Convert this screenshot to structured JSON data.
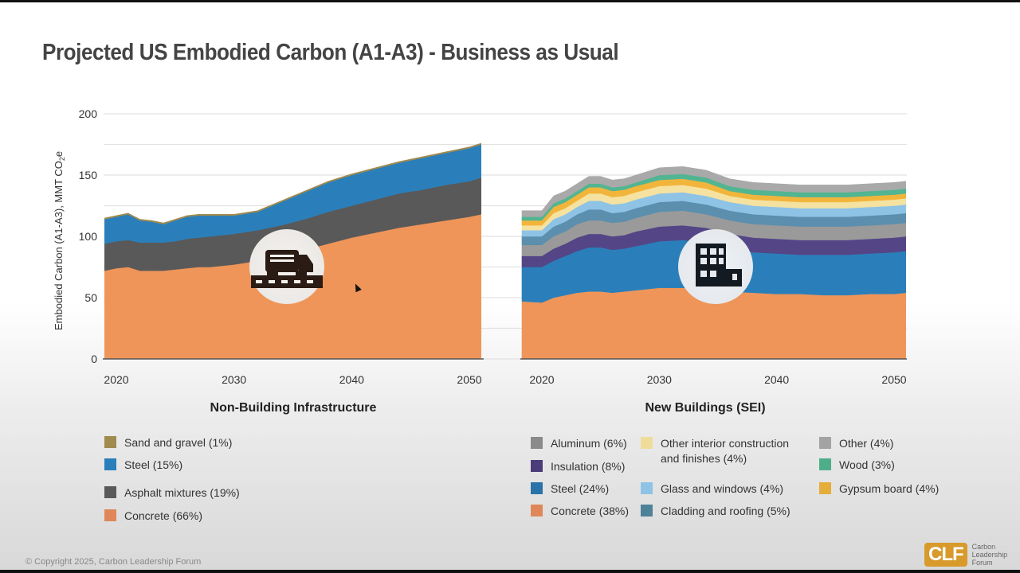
{
  "title": "Projected US Embodied Carbon (A1-A3) - Business as Usual",
  "copyright": "© Copyright 2025, Carbon Leadership Forum",
  "logo": {
    "mark": "CLF",
    "line1": "Carbon",
    "line2": "Leadership",
    "line3": "Forum",
    "color": "#d79a2b"
  },
  "chart_data": [
    {
      "type": "area",
      "stacked": true,
      "title": "Non-Building Infrastructure",
      "xlabel": "",
      "ylabel": "Embodied Carbon (A1-A3), MMT CO2e",
      "ylim": [
        0,
        200
      ],
      "yticks": [
        0,
        50,
        100,
        150,
        200
      ],
      "xticks": [
        2020,
        2030,
        2040,
        2050
      ],
      "grid": true,
      "icon": "truck-on-road-icon",
      "x": [
        2019,
        2020,
        2021,
        2022,
        2023,
        2024,
        2025,
        2026,
        2027,
        2028,
        2030,
        2032,
        2034,
        2036,
        2038,
        2040,
        2042,
        2044,
        2046,
        2048,
        2050,
        2051
      ],
      "series": [
        {
          "name": "Concrete",
          "legend": "Concrete (66%)",
          "color": "#ef9559",
          "values": [
            72,
            74,
            75,
            72,
            72,
            72,
            73,
            74,
            75,
            75,
            77,
            80,
            84,
            89,
            94,
            99,
            103,
            107,
            110,
            113,
            116,
            118
          ]
        },
        {
          "name": "Asphalt mixtures",
          "legend": "Asphalt mixtures (19%)",
          "color": "#595959",
          "values": [
            22,
            22,
            22,
            23,
            23,
            23,
            23,
            24,
            24,
            25,
            25,
            25,
            25,
            25,
            26,
            26,
            27,
            28,
            28,
            29,
            29,
            30
          ]
        },
        {
          "name": "Steel",
          "legend": "Steel (15%)",
          "color": "#2a7fba",
          "values": [
            20,
            20,
            21,
            18,
            17,
            15,
            17,
            18,
            18,
            17,
            15,
            15,
            19,
            22,
            24,
            25,
            25,
            25,
            26,
            26,
            27,
            27
          ]
        },
        {
          "name": "Sand and gravel",
          "legend": "Sand and gravel (1%)",
          "color": "#a08a4e",
          "values": [
            1,
            1,
            1,
            1,
            1,
            1,
            1,
            1,
            1,
            1,
            1,
            1,
            1,
            1,
            1,
            1,
            1,
            1,
            1,
            1,
            1,
            1
          ]
        }
      ]
    },
    {
      "type": "area",
      "stacked": true,
      "title": "New Buildings (SEI)",
      "xlabel": "",
      "ylabel": "",
      "ylim": [
        0,
        200
      ],
      "xticks": [
        2020,
        2030,
        2040,
        2050
      ],
      "grid": true,
      "icon": "building-icon",
      "x": [
        2018.3,
        2020,
        2021,
        2022,
        2023,
        2024,
        2025,
        2026,
        2027,
        2028,
        2030,
        2032,
        2034,
        2036,
        2038,
        2040,
        2042,
        2044,
        2046,
        2048,
        2050,
        2051
      ],
      "series": [
        {
          "name": "Concrete",
          "legend": "Concrete (38%)",
          "color": "#ef9559",
          "values": [
            47,
            46,
            50,
            52,
            54,
            55,
            55,
            54,
            55,
            56,
            58,
            58,
            57,
            55,
            54,
            53,
            53,
            52,
            52,
            53,
            53,
            54
          ]
        },
        {
          "name": "Steel",
          "legend": "Steel (24%)",
          "color": "#2a7fba",
          "values": [
            28,
            29,
            30,
            32,
            34,
            36,
            36,
            35,
            35,
            36,
            38,
            39,
            38,
            35,
            33,
            33,
            32,
            33,
            33,
            33,
            34,
            34
          ]
        },
        {
          "name": "Insulation",
          "legend": "Insulation (8%)",
          "color": "#544586",
          "values": [
            9,
            9,
            10,
            10,
            11,
            11,
            11,
            11,
            11,
            12,
            12,
            12,
            12,
            12,
            12,
            12,
            12,
            12,
            12,
            12,
            12,
            12
          ]
        },
        {
          "name": "Aluminum",
          "legend": "Aluminum (6%)",
          "color": "#9a9a9a",
          "values": [
            9,
            9,
            10,
            10,
            11,
            11,
            11,
            11,
            11,
            11,
            12,
            12,
            11,
            11,
            11,
            11,
            11,
            11,
            11,
            11,
            11,
            11
          ]
        },
        {
          "name": "Cladding and roofing",
          "legend": "Cladding and roofing (5%)",
          "color": "#5b8fad",
          "values": [
            7,
            7,
            8,
            8,
            8,
            9,
            9,
            8,
            8,
            8,
            8,
            8,
            8,
            8,
            8,
            8,
            8,
            8,
            8,
            8,
            8,
            8
          ]
        },
        {
          "name": "Glass and windows",
          "legend": "Glass and windows (4%)",
          "color": "#8ec3e6",
          "values": [
            5,
            5,
            6,
            6,
            6,
            7,
            7,
            7,
            7,
            7,
            7,
            7,
            7,
            7,
            7,
            7,
            7,
            7,
            7,
            7,
            7,
            7
          ]
        },
        {
          "name": "Other interior construction and finishes",
          "legend": "Other interior construction and finishes (4%)",
          "color": "#f5e2a0",
          "values": [
            4,
            4,
            5,
            5,
            5,
            6,
            6,
            6,
            6,
            6,
            6,
            6,
            6,
            5,
            5,
            5,
            5,
            5,
            5,
            5,
            5,
            5
          ]
        },
        {
          "name": "Gypsum board",
          "legend": "Gypsum board (4%)",
          "color": "#f2b53b",
          "values": [
            4,
            4,
            5,
            5,
            5,
            5,
            5,
            5,
            5,
            5,
            5,
            5,
            5,
            4,
            4,
            4,
            4,
            4,
            4,
            4,
            4,
            4
          ]
        },
        {
          "name": "Wood",
          "legend": "Wood (3%)",
          "color": "#52b591",
          "values": [
            3,
            3,
            3,
            3,
            3,
            3,
            3,
            3,
            3,
            3,
            4,
            4,
            4,
            4,
            4,
            4,
            4,
            4,
            4,
            4,
            4,
            4
          ]
        },
        {
          "name": "Other",
          "legend": "Other (4%)",
          "color": "#a9a9a9",
          "values": [
            5,
            5,
            6,
            6,
            6,
            6,
            6,
            6,
            6,
            6,
            6,
            6,
            6,
            6,
            6,
            6,
            6,
            6,
            6,
            6,
            6,
            6
          ]
        }
      ]
    }
  ],
  "legends": {
    "left": [
      {
        "label": "Sand and gravel (1%)",
        "color": "#a08a4e"
      },
      {
        "label": "Steel (15%)",
        "color": "#2a7fba"
      },
      {
        "label": "Asphalt mixtures (19%)",
        "color": "#595959"
      },
      {
        "label": "Concrete (66%)",
        "color": "#e0875a"
      }
    ],
    "right_col1": [
      {
        "label": "Aluminum (6%)",
        "color": "#8a8a8a"
      },
      {
        "label": "Insulation (8%)",
        "color": "#4a3d7a"
      },
      {
        "label": "Steel (24%)",
        "color": "#2a73a8"
      },
      {
        "label": "Concrete (38%)",
        "color": "#e0875a"
      }
    ],
    "right_col2": [
      {
        "label": "Other interior construction and finishes (4%)",
        "label_line1": "Other interior construction",
        "label_line2": "and finishes (4%)",
        "color": "#efdc9a"
      },
      {
        "label": "Glass and windows (4%)",
        "color": "#8ec3e6"
      },
      {
        "label": "Cladding and roofing (5%)",
        "color": "#4e8299"
      }
    ],
    "right_col3": [
      {
        "label": "Other (4%)",
        "color": "#a3a3a3"
      },
      {
        "label": "Wood (3%)",
        "color": "#4fae8a"
      },
      {
        "label": "Gypsum board (4%)",
        "color": "#e5ad3a"
      }
    ]
  }
}
